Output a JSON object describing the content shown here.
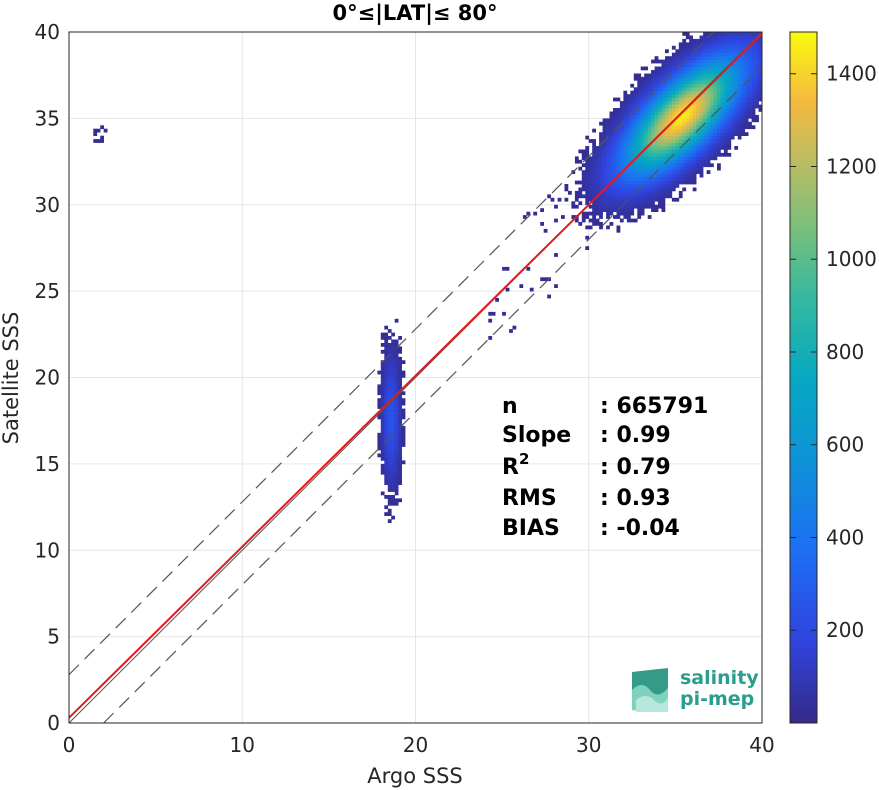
{
  "chart_data": {
    "type": "heatmap",
    "title": "0°≤|LAT|≤ 80°",
    "xlabel": "Argo SSS",
    "ylabel": "Satellite SSS",
    "xlim": [
      0,
      40
    ],
    "ylim": [
      0,
      40
    ],
    "xticks": [
      "0",
      "10",
      "20",
      "30",
      "40"
    ],
    "yticks": [
      "0",
      "5",
      "10",
      "15",
      "20",
      "25",
      "30",
      "35",
      "40"
    ],
    "grid": true,
    "colorbar": {
      "range": [
        0,
        1490
      ],
      "ticks": [
        "200",
        "400",
        "600",
        "800",
        "1000",
        "1200",
        "1400"
      ],
      "colormap": "parula"
    },
    "clusters": [
      {
        "center": [
          35.3,
          35.0
        ],
        "spread": [
          2.6,
          2.6
        ],
        "peak": 1450
      },
      {
        "center": [
          18.5,
          17.5
        ],
        "spread": [
          0.35,
          2.5
        ],
        "peak": 250
      },
      {
        "center": [
          1.7,
          34.0
        ],
        "spread": [
          0.3,
          0.5
        ],
        "peak": 40
      }
    ],
    "lines": {
      "identity": {
        "from": [
          0,
          0
        ],
        "to": [
          40,
          40
        ],
        "color": "#000000"
      },
      "fit": {
        "from": [
          0,
          0.3
        ],
        "to": [
          40,
          39.9
        ],
        "color": "#e41a1c"
      },
      "plus_band": {
        "from": [
          0,
          2.8
        ],
        "to": [
          40,
          42.8
        ],
        "style": "dashed"
      },
      "minus_band": {
        "from": [
          2,
          0
        ],
        "to": [
          40,
          38
        ],
        "style": "dashed"
      }
    },
    "stats": [
      {
        "label": "n",
        "value": ": 665791"
      },
      {
        "label": "Slope",
        "value": ": 0.99"
      },
      {
        "label": "R2",
        "value": ": 0.79"
      },
      {
        "label": "RMS",
        "value": ": 0.93"
      },
      {
        "label": "BIAS",
        "value": ": -0.04"
      }
    ]
  },
  "logo": {
    "line1": "salinity",
    "line2": "pi-mep"
  },
  "colors": {
    "fit_line": "#e41a1c",
    "logo": "#2a9d8f"
  }
}
